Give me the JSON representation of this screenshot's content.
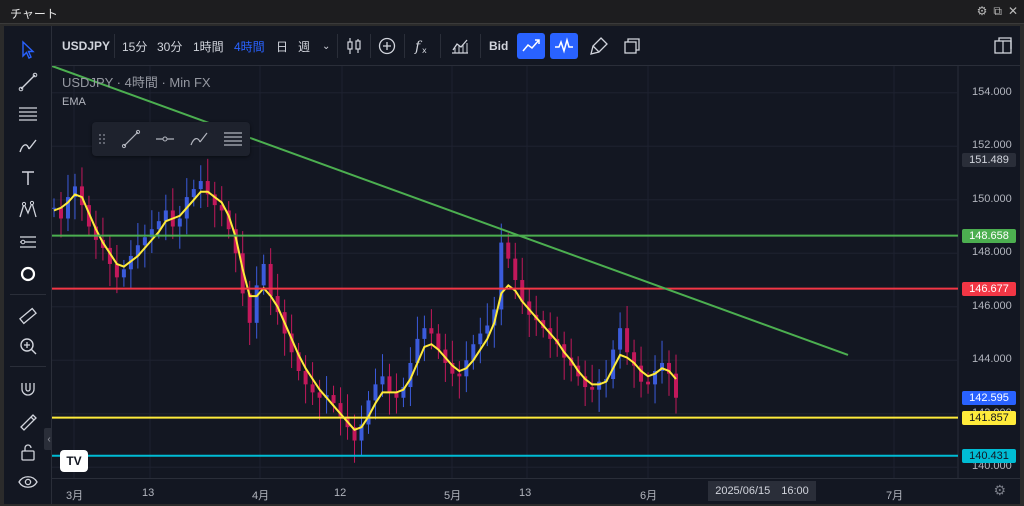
{
  "window": {
    "title": "チャート",
    "buttons": [
      "⚙",
      "⧉",
      "✕"
    ]
  },
  "toolbar": {
    "symbol": "USDJPY",
    "intervals": [
      "15分",
      "30分",
      "1時間",
      "4時間",
      "日",
      "週"
    ],
    "active_interval": "4時間",
    "bid_label": "Bid"
  },
  "legend": {
    "line1": "USDJPY · 4時間 · Min FX",
    "indicator": "EMA"
  },
  "price_scale": {
    "ticks": [
      "154.000",
      "152.000",
      "150.000",
      "148.000",
      "146.000",
      "144.000",
      "142.000",
      "140.000"
    ],
    "tick_values": [
      154,
      152,
      150,
      148,
      146,
      144,
      142,
      140
    ],
    "boxes": [
      {
        "label": "151.489",
        "value": 151.489,
        "bg": "#2a2e39",
        "fg": "#d1d4dc"
      },
      {
        "label": "148.658",
        "value": 148.658,
        "bg": "#4caf50",
        "fg": "#ffffff"
      },
      {
        "label": "146.677",
        "value": 146.677,
        "bg": "#f23645",
        "fg": "#ffffff"
      },
      {
        "label": "142.595",
        "value": 142.595,
        "bg": "#2962ff",
        "fg": "#ffffff"
      },
      {
        "label": "141.857",
        "value": 141.857,
        "bg": "#ffeb3b",
        "fg": "#131722"
      },
      {
        "label": "140.431",
        "value": 140.431,
        "bg": "#00bcd4",
        "fg": "#131722"
      }
    ]
  },
  "time_scale": {
    "labels": [
      "3月",
      "13",
      "4月",
      "12",
      "5月",
      "13",
      "6月",
      "7月"
    ],
    "cursor_label": "2025/06/15　16:00"
  },
  "chart_data": {
    "type": "candlestick",
    "ylim": [
      139.6,
      155.0
    ],
    "horizontal_lines": [
      {
        "price": 148.658,
        "color": "#4caf50"
      },
      {
        "price": 146.677,
        "color": "#f23645"
      },
      {
        "price": 141.857,
        "color": "#ffeb3b"
      },
      {
        "price": 140.431,
        "color": "#00bcd4"
      }
    ],
    "trendline": {
      "from": 155.0,
      "to": 144.2,
      "color": "#4caf50"
    },
    "close_series": [
      149.7,
      149.3,
      150.1,
      150.5,
      149.8,
      149.0,
      148.5,
      148.2,
      147.6,
      147.1,
      147.4,
      147.9,
      148.3,
      148.6,
      148.9,
      149.2,
      149.6,
      149.0,
      149.3,
      150.1,
      150.4,
      150.7,
      150.2,
      149.8,
      149.6,
      148.9,
      148.0,
      146.5,
      145.4,
      146.8,
      147.6,
      146.4,
      145.8,
      145.0,
      144.3,
      143.6,
      143.1,
      142.8,
      142.6,
      142.7,
      142.4,
      141.9,
      141.5,
      141.0,
      141.6,
      142.5,
      143.1,
      143.4,
      142.8,
      142.6,
      143.0,
      143.9,
      144.8,
      145.2,
      145.0,
      144.4,
      143.9,
      143.5,
      143.4,
      144.0,
      144.6,
      145.0,
      145.3,
      145.9,
      148.4,
      147.8,
      147.0,
      146.2,
      145.7,
      145.5,
      145.2,
      144.8,
      144.6,
      144.1,
      143.8,
      143.4,
      143.0,
      142.9,
      143.2,
      143.3,
      144.4,
      145.2,
      144.3,
      143.8,
      143.2,
      143.1,
      143.6,
      143.9,
      143.5,
      142.6
    ],
    "ema_series": [
      149.6,
      149.7,
      149.9,
      150.2,
      150.1,
      149.5,
      148.9,
      148.4,
      148.0,
      147.6,
      147.5,
      147.7,
      147.9,
      148.2,
      148.5,
      148.8,
      149.2,
      149.3,
      149.4,
      149.7,
      150.0,
      150.3,
      150.3,
      150.1,
      149.9,
      149.4,
      148.6,
      147.4,
      146.4,
      146.4,
      146.7,
      146.4,
      146.0,
      145.4,
      144.8,
      144.2,
      143.7,
      143.3,
      142.9,
      142.6,
      142.3,
      142.0,
      141.7,
      141.4,
      141.5,
      141.9,
      142.4,
      142.8,
      142.8,
      142.8,
      142.9,
      143.3,
      143.9,
      144.5,
      144.6,
      144.4,
      144.1,
      143.8,
      143.6,
      143.7,
      144.0,
      144.4,
      144.8,
      145.4,
      146.5,
      146.8,
      146.6,
      146.2,
      145.9,
      145.6,
      145.3,
      145.0,
      144.7,
      144.3,
      144.0,
      143.6,
      143.3,
      143.1,
      143.1,
      143.2,
      143.7,
      144.2,
      144.1,
      143.9,
      143.6,
      143.4,
      143.5,
      143.7,
      143.6,
      143.3
    ]
  }
}
